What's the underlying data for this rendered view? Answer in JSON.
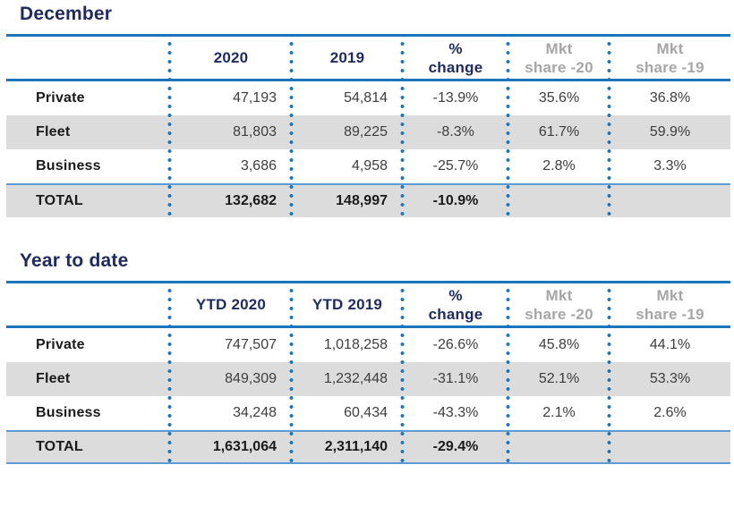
{
  "colors": {
    "navy_title": "#1F2A5E",
    "rule_blue": "#1B75BC",
    "thin_rule_light_blue": "#5B9BD5",
    "dot_blue": "#1B75BC",
    "row_shade_gray": "#DCDCDC",
    "muted_header_gray": "#A6A6A6",
    "value_text": "#3D3D3D",
    "label_text": "#1A1A1A"
  },
  "tables": [
    {
      "title": "December",
      "headers": [
        {
          "line1": "",
          "line2": ""
        },
        {
          "line1": "2020",
          "line2": ""
        },
        {
          "line1": "2019",
          "line2": ""
        },
        {
          "line1": "%",
          "line2": "change"
        },
        {
          "line1": "Mkt",
          "line2": "share -20"
        },
        {
          "line1": "Mkt",
          "line2": "share -19"
        }
      ],
      "rows": [
        {
          "label": "Private",
          "y_current": "47,193",
          "y_prior": "54,814",
          "change": "-13.9%",
          "share_current": "35.6%",
          "share_prior": "36.8%"
        },
        {
          "label": "Fleet",
          "y_current": "81,803",
          "y_prior": "89,225",
          "change": "-8.3%",
          "share_current": "61.7%",
          "share_prior": "59.9%"
        },
        {
          "label": "Business",
          "y_current": "3,686",
          "y_prior": "4,958",
          "change": "-25.7%",
          "share_current": "2.8%",
          "share_prior": "3.3%"
        }
      ],
      "total": {
        "label": "TOTAL",
        "y_current": "132,682",
        "y_prior": "148,997",
        "change": "-10.9%",
        "share_current": "",
        "share_prior": ""
      }
    },
    {
      "title": "Year to date",
      "headers": [
        {
          "line1": "",
          "line2": ""
        },
        {
          "line1": "YTD 2020",
          "line2": ""
        },
        {
          "line1": "YTD 2019",
          "line2": ""
        },
        {
          "line1": "%",
          "line2": "change"
        },
        {
          "line1": "Mkt",
          "line2": "share -20"
        },
        {
          "line1": "Mkt",
          "line2": "share -19"
        }
      ],
      "rows": [
        {
          "label": "Private",
          "y_current": "747,507",
          "y_prior": "1,018,258",
          "change": "-26.6%",
          "share_current": "45.8%",
          "share_prior": "44.1%"
        },
        {
          "label": "Fleet",
          "y_current": "849,309",
          "y_prior": "1,232,448",
          "change": "-31.1%",
          "share_current": "52.1%",
          "share_prior": "53.3%"
        },
        {
          "label": "Business",
          "y_current": "34,248",
          "y_prior": "60,434",
          "change": "-43.3%",
          "share_current": "2.1%",
          "share_prior": "2.6%"
        }
      ],
      "total": {
        "label": "TOTAL",
        "y_current": "1,631,064",
        "y_prior": "2,311,140",
        "change": "-29.4%",
        "share_current": "",
        "share_prior": ""
      }
    }
  ],
  "chart_data": [
    {
      "type": "table",
      "title": "December",
      "columns": [
        "",
        "2020",
        "2019",
        "% change",
        "Mkt share -20",
        "Mkt share -19"
      ],
      "rows": [
        [
          "Private",
          "47,193",
          "54,814",
          "-13.9%",
          "35.6%",
          "36.8%"
        ],
        [
          "Fleet",
          "81,803",
          "89,225",
          "-8.3%",
          "61.7%",
          "59.9%"
        ],
        [
          "Business",
          "3,686",
          "4,958",
          "-25.7%",
          "2.8%",
          "3.3%"
        ],
        [
          "TOTAL",
          "132,682",
          "148,997",
          "-10.9%",
          "",
          ""
        ]
      ]
    },
    {
      "type": "table",
      "title": "Year to date",
      "columns": [
        "",
        "YTD 2020",
        "YTD 2019",
        "% change",
        "Mkt share -20",
        "Mkt share -19"
      ],
      "rows": [
        [
          "Private",
          "747,507",
          "1,018,258",
          "-26.6%",
          "45.8%",
          "44.1%"
        ],
        [
          "Fleet",
          "849,309",
          "1,232,448",
          "-31.1%",
          "52.1%",
          "53.3%"
        ],
        [
          "Business",
          "34,248",
          "60,434",
          "-43.3%",
          "2.1%",
          "2.6%"
        ],
        [
          "TOTAL",
          "1,631,064",
          "2,311,140",
          "-29.4%",
          "",
          ""
        ]
      ]
    }
  ]
}
